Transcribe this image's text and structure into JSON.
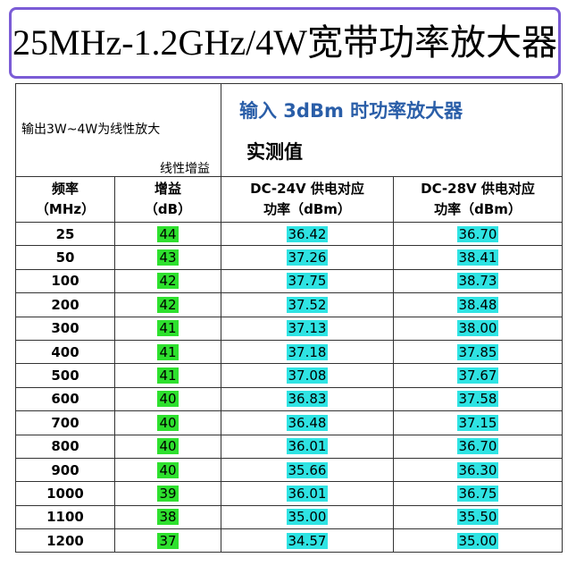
{
  "header": {
    "title": "25MHz-1.2GHz/4W宽带功率放大器"
  },
  "table": {
    "note": "输出3W~4W为线性放大",
    "gain_note": "线性增益",
    "test_title": "输入 3dBm 时功率放大器",
    "test_subtitle": "实测值",
    "columns": [
      [
        "频率",
        "（MHz）"
      ],
      [
        "增益",
        "（dB）"
      ],
      [
        "DC-24V 供电对应",
        "功率（dBm）"
      ],
      [
        "DC-28V 供电对应",
        "功率（dBm）"
      ]
    ],
    "rows": [
      [
        "25",
        "44",
        "36.42",
        "36.70"
      ],
      [
        "50",
        "43",
        "37.26",
        "38.41"
      ],
      [
        "100",
        "42",
        "37.75",
        "38.73"
      ],
      [
        "200",
        "42",
        "37.52",
        "38.48"
      ],
      [
        "300",
        "41",
        "37.13",
        "38.00"
      ],
      [
        "400",
        "41",
        "37.18",
        "37.85"
      ],
      [
        "500",
        "41",
        "37.08",
        "37.67"
      ],
      [
        "600",
        "40",
        "36.83",
        "37.58"
      ],
      [
        "700",
        "40",
        "36.48",
        "37.15"
      ],
      [
        "800",
        "40",
        "36.01",
        "36.70"
      ],
      [
        "900",
        "40",
        "35.66",
        "36.30"
      ],
      [
        "1000",
        "39",
        "36.01",
        "36.75"
      ],
      [
        "1100",
        "38",
        "35.00",
        "35.50"
      ],
      [
        "1200",
        "37",
        "34.57",
        "35.00"
      ]
    ]
  }
}
